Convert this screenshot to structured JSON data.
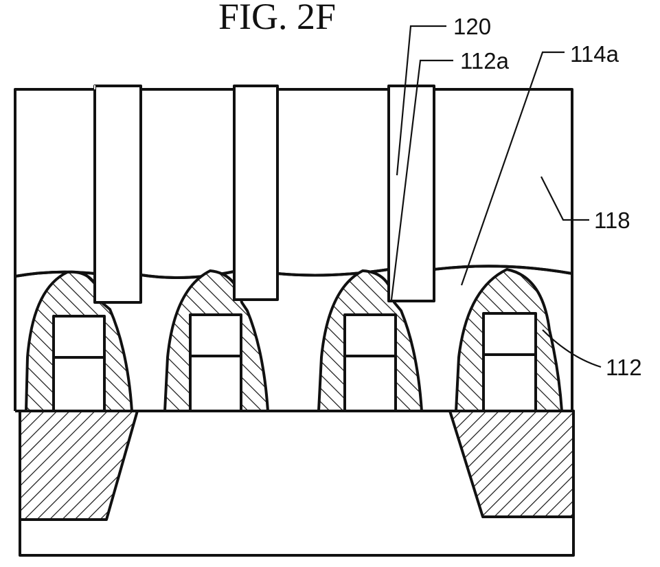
{
  "figure": {
    "title": "FIG. 2F",
    "labels": {
      "l120": "120",
      "l112a": "112a",
      "l114a": "114a",
      "l118": "118",
      "l112": "112"
    }
  },
  "style": {
    "ink": "#111111",
    "background": "#ffffff"
  }
}
